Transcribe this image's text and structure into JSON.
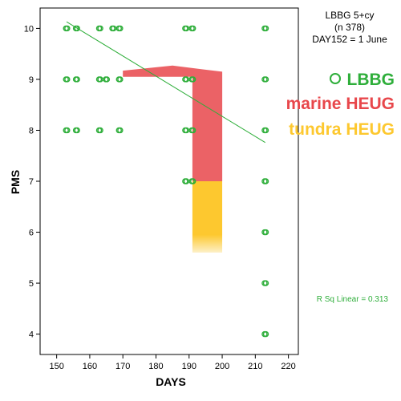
{
  "info": {
    "line1": "LBBG 5+cy",
    "line2": "(n 378)",
    "line3": "DAY152 = 1 June"
  },
  "legend": {
    "items": [
      {
        "label": "LBBG",
        "color": "#2eae3a"
      },
      {
        "label": "marine HEUG",
        "color": "#e8474b"
      },
      {
        "label": "tundra HEUG",
        "color": "#fdc82f"
      }
    ]
  },
  "rsq_label": "R Sq Linear = 0.313",
  "chart_data": {
    "type": "scatter",
    "xlabel": "DAYS",
    "ylabel": "PMS",
    "xlim": [
      145,
      223
    ],
    "ylim": [
      3.6,
      10.4
    ],
    "x_ticks": [
      150,
      160,
      170,
      180,
      190,
      200,
      210,
      220
    ],
    "y_ticks": [
      4,
      5,
      6,
      7,
      8,
      9,
      10
    ],
    "grid": false,
    "legend_position": "right",
    "series": [
      {
        "name": "LBBG",
        "color": "#2eae3a",
        "points": [
          [
            153,
            10
          ],
          [
            156,
            10
          ],
          [
            163,
            10
          ],
          [
            167,
            10
          ],
          [
            169,
            10
          ],
          [
            189,
            10
          ],
          [
            191,
            10
          ],
          [
            213,
            10
          ],
          [
            153,
            9
          ],
          [
            156,
            9
          ],
          [
            163,
            9
          ],
          [
            165,
            9
          ],
          [
            169,
            9
          ],
          [
            189,
            9
          ],
          [
            191,
            9
          ],
          [
            213,
            9
          ],
          [
            153,
            8
          ],
          [
            156,
            8
          ],
          [
            163,
            8
          ],
          [
            169,
            8
          ],
          [
            189,
            8
          ],
          [
            191,
            8
          ],
          [
            213,
            8
          ],
          [
            189,
            7
          ],
          [
            191,
            7
          ],
          [
            213,
            7
          ],
          [
            213,
            6
          ],
          [
            213,
            5
          ],
          [
            213,
            4
          ]
        ]
      }
    ],
    "regression": {
      "label": "R Sq Linear = 0.313",
      "r_squared": 0.313,
      "x": [
        153,
        213
      ],
      "y": [
        10.13,
        7.76
      ],
      "color": "#2eae3a"
    },
    "overlays": [
      {
        "name": "marine HEUG",
        "color": "#e8474b",
        "polygon": [
          [
            170,
            9.17
          ],
          [
            185,
            9.27
          ],
          [
            200,
            9.15
          ],
          [
            200,
            7.0
          ],
          [
            191,
            7.0
          ],
          [
            191,
            9.05
          ],
          [
            170,
            9.05
          ]
        ]
      },
      {
        "name": "tundra HEUG",
        "color": "#fdc82f",
        "x_range": [
          191,
          200
        ],
        "y_range": [
          5.6,
          7.0
        ]
      }
    ]
  }
}
